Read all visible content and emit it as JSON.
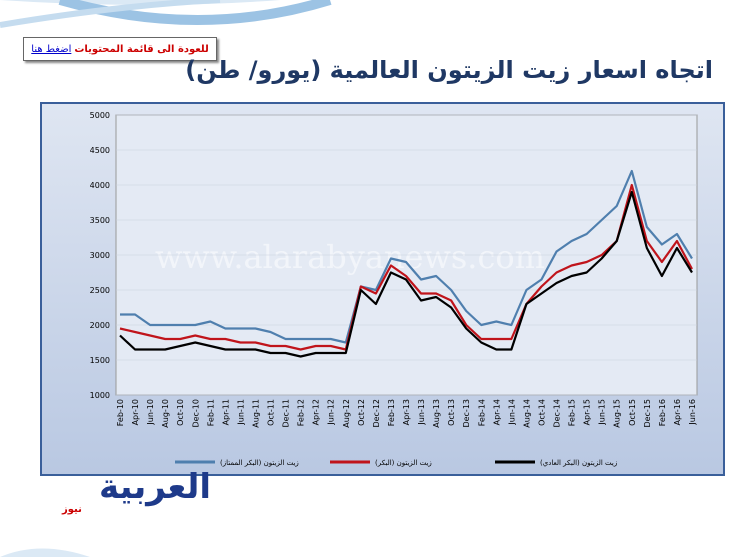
{
  "header": {
    "link_text": "للعودة الى قائمة المحتويات",
    "link_action": "اضغط هنا"
  },
  "watermark": "www.alarabyanews.com",
  "logo": {
    "main": "العربية",
    "sub": "نيوز"
  },
  "chart_data": {
    "type": "line",
    "title": "اتجاه اسعار زيت الزيتون العالمية (يورو/ طن)",
    "categories": [
      "Feb-10",
      "Apr-10",
      "Jun-10",
      "Aug-10",
      "Oct-10",
      "Dec-10",
      "Feb-11",
      "Apr-11",
      "Jun-11",
      "Aug-11",
      "Oct-11",
      "Dec-11",
      "Feb-12",
      "Apr-12",
      "Jun-12",
      "Aug-12",
      "Oct-12",
      "Dec-12",
      "Feb-13",
      "Apr-13",
      "Jun-13",
      "Aug-13",
      "Oct-13",
      "Dec-13",
      "Feb-14",
      "Apr-14",
      "Jun-14",
      "Aug-14",
      "Oct-14",
      "Dec-14",
      "Feb-15",
      "Apr-15",
      "Jun-15",
      "Aug-15",
      "Oct-15",
      "Dec-15",
      "Feb-16",
      "Apr-16",
      "Jun-16"
    ],
    "series": [
      {
        "name": "زيت الزيتون (البكر الممتاز)",
        "color": "#4f7fae",
        "values": [
          2150,
          2150,
          2000,
          2000,
          2000,
          2000,
          2050,
          1950,
          1950,
          1950,
          1900,
          1800,
          1800,
          1800,
          1800,
          1750,
          2550,
          2500,
          2950,
          2900,
          2650,
          2700,
          2500,
          2200,
          2000,
          2050,
          2000,
          2500,
          2650,
          3050,
          3200,
          3300,
          3500,
          3700,
          4200,
          3400,
          3150,
          3300,
          2950
        ]
      },
      {
        "name": "زيت الزيتون (البكر)",
        "color": "#c0141b",
        "values": [
          1950,
          1900,
          1850,
          1800,
          1800,
          1850,
          1800,
          1800,
          1750,
          1750,
          1700,
          1700,
          1650,
          1700,
          1700,
          1650,
          2550,
          2450,
          2850,
          2700,
          2450,
          2450,
          2350,
          2000,
          1800,
          1800,
          1800,
          2300,
          2550,
          2750,
          2850,
          2900,
          3000,
          3200,
          4000,
          3200,
          2900,
          3200,
          2800
        ]
      },
      {
        "name": "زيت الزيتون (البكر العادي)",
        "color": "#000000",
        "values": [
          1850,
          1650,
          1650,
          1650,
          1700,
          1750,
          1700,
          1650,
          1650,
          1650,
          1600,
          1600,
          1550,
          1600,
          1600,
          1600,
          2500,
          2300,
          2750,
          2650,
          2350,
          2400,
          2250,
          1950,
          1750,
          1650,
          1650,
          2300,
          2450,
          2600,
          2700,
          2750,
          2950,
          3200,
          3900,
          3100,
          2700,
          3100,
          2750
        ]
      }
    ],
    "ylim": [
      1000,
      5000
    ],
    "yticks": [
      1000,
      1500,
      2000,
      2500,
      3000,
      3500,
      4000,
      4500,
      5000
    ],
    "grid": true
  }
}
